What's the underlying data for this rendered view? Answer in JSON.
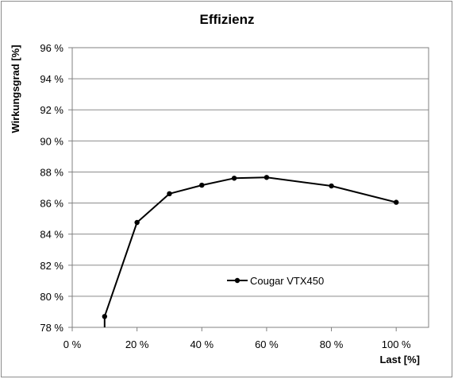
{
  "chart_data": {
    "type": "line",
    "title": "Effizienz",
    "xlabel": "Last [%]",
    "ylabel": "Wirkungsgrad [%]",
    "xlim": [
      0,
      110
    ],
    "ylim": [
      78,
      96
    ],
    "x_ticks": [
      "0 %",
      "20 %",
      "40 %",
      "60 %",
      "80 %",
      "100 %"
    ],
    "x_tick_values": [
      0,
      20,
      40,
      60,
      80,
      100
    ],
    "y_ticks": [
      "78 %",
      "80 %",
      "82 %",
      "84 %",
      "86 %",
      "88 %",
      "90 %",
      "92 %",
      "94 %",
      "96 %"
    ],
    "y_tick_values": [
      78,
      80,
      82,
      84,
      86,
      88,
      90,
      92,
      94,
      96
    ],
    "grid": "horizontal",
    "legend_position": "center-right",
    "series": [
      {
        "name": "Cougar VTX450",
        "color": "#000000",
        "x": [
          10,
          10,
          20,
          30,
          40,
          50,
          60,
          80,
          100
        ],
        "y": [
          77.7,
          78.7,
          84.75,
          86.6,
          87.15,
          87.6,
          87.65,
          87.1,
          86.05
        ]
      }
    ]
  }
}
